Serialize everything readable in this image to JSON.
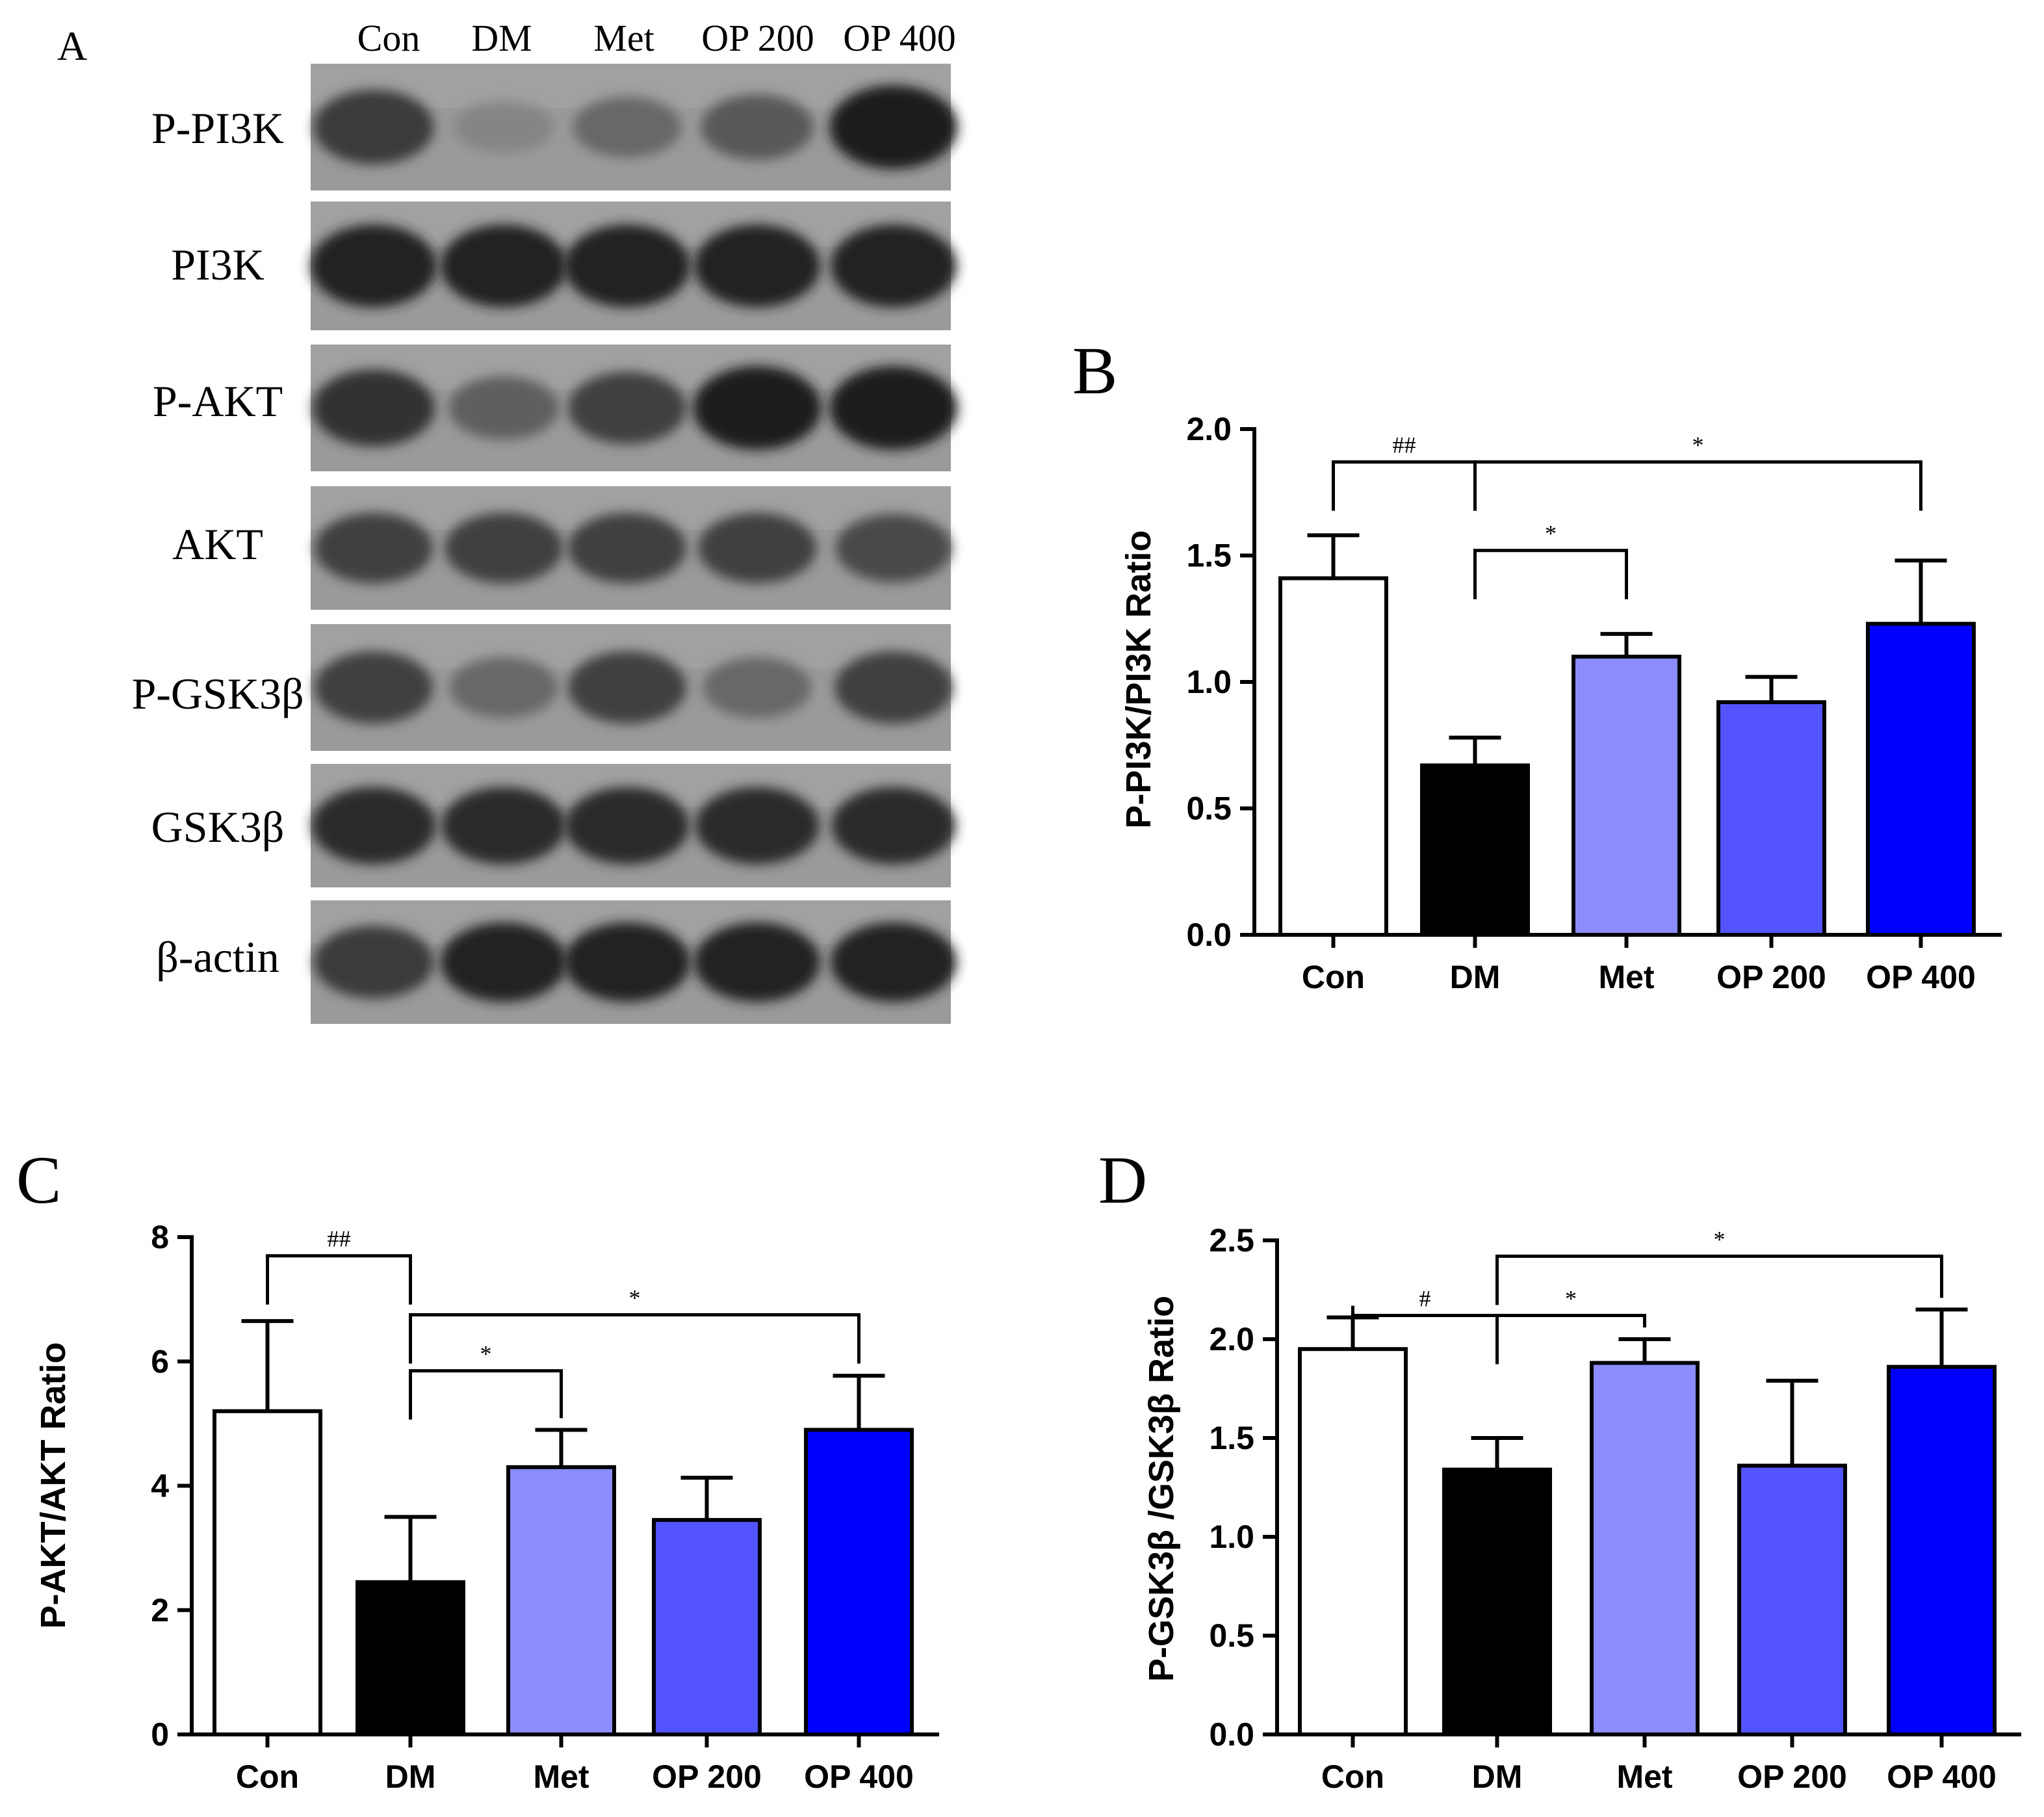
{
  "panels": {
    "A": "A",
    "B": "B",
    "C": "C",
    "D": "D"
  },
  "blot": {
    "lanes": [
      "Con",
      "DM",
      "Met",
      "OP 200",
      "OP 400"
    ],
    "rows": [
      {
        "label": "P-PI3K",
        "intensity": [
          0.75,
          0.25,
          0.45,
          0.55,
          0.95
        ]
      },
      {
        "label": "PI3K",
        "intensity": [
          0.9,
          0.9,
          0.9,
          0.9,
          0.9
        ]
      },
      {
        "label": "P-AKT",
        "intensity": [
          0.8,
          0.5,
          0.7,
          0.95,
          0.95
        ]
      },
      {
        "label": "AKT",
        "intensity": [
          0.7,
          0.7,
          0.7,
          0.7,
          0.65
        ]
      },
      {
        "label": "P-GSK3β",
        "intensity": [
          0.7,
          0.45,
          0.7,
          0.45,
          0.7
        ]
      },
      {
        "label": "GSK3β",
        "intensity": [
          0.85,
          0.85,
          0.85,
          0.85,
          0.85
        ]
      },
      {
        "label": "β-actin",
        "intensity": [
          0.75,
          0.9,
          0.9,
          0.9,
          0.9
        ]
      }
    ]
  },
  "colors": {
    "Con": "#ffffff",
    "DM": "#000000",
    "Met": "#8c8cff",
    "OP 200": "#5454ff",
    "OP 400": "#0000ff"
  },
  "chart_data": [
    {
      "id": "B",
      "type": "bar",
      "title": "",
      "xlabel": "",
      "ylabel": "P-PI3K/PI3K Ratio",
      "categories": [
        "Con",
        "DM",
        "Met",
        "OP 200",
        "OP 400"
      ],
      "values": [
        1.41,
        0.67,
        1.1,
        0.92,
        1.23
      ],
      "errors": [
        0.17,
        0.11,
        0.09,
        0.1,
        0.25
      ],
      "ylim": [
        0,
        2.0
      ],
      "yticks": [
        "0.0",
        "0.5",
        "1.0",
        "1.5",
        "2.0"
      ],
      "significance": [
        {
          "from": "Con",
          "to": "DM",
          "label": "##"
        },
        {
          "from": "DM",
          "to": "Met",
          "label": "*"
        },
        {
          "from": "DM",
          "to": "OP 400",
          "label": "*"
        }
      ]
    },
    {
      "id": "C",
      "type": "bar",
      "title": "",
      "xlabel": "",
      "ylabel": "P-AKT/AKT Ratio",
      "categories": [
        "Con",
        "DM",
        "Met",
        "OP 200",
        "OP 400"
      ],
      "values": [
        5.2,
        2.45,
        4.3,
        3.45,
        4.9
      ],
      "errors": [
        1.45,
        1.05,
        0.6,
        0.68,
        0.87
      ],
      "ylim": [
        0,
        8
      ],
      "yticks": [
        "0",
        "2",
        "4",
        "6",
        "8"
      ],
      "significance": [
        {
          "from": "Con",
          "to": "DM",
          "label": "##"
        },
        {
          "from": "DM",
          "to": "Met",
          "label": "*"
        },
        {
          "from": "DM",
          "to": "OP 400",
          "label": "*"
        }
      ]
    },
    {
      "id": "D",
      "type": "bar",
      "title": "",
      "xlabel": "",
      "ylabel": "P-GSK3β /GSK3β  Ratio",
      "categories": [
        "Con",
        "DM",
        "Met",
        "OP 200",
        "OP 400"
      ],
      "values": [
        1.95,
        1.34,
        1.88,
        1.36,
        1.86
      ],
      "errors": [
        0.16,
        0.16,
        0.12,
        0.43,
        0.29
      ],
      "ylim": [
        0,
        2.5
      ],
      "yticks": [
        "0.0",
        "0.5",
        "1.0",
        "1.5",
        "2.0",
        "2.5"
      ],
      "significance": [
        {
          "from": "Con",
          "to": "DM",
          "label": "#"
        },
        {
          "from": "DM",
          "to": "Met",
          "label": "*"
        },
        {
          "from": "DM",
          "to": "OP 400",
          "label": "*"
        }
      ]
    }
  ]
}
